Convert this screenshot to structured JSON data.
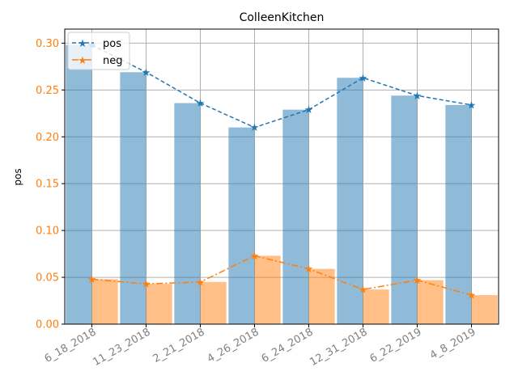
{
  "chart_data": {
    "type": "bar",
    "title": "ColleenKitchen",
    "xlabel": "",
    "ylabel": "pos",
    "ylim": [
      0,
      0.315
    ],
    "yticks": [
      "0.00",
      "0.05",
      "0.10",
      "0.15",
      "0.20",
      "0.25",
      "0.30"
    ],
    "categories": [
      "6_18_2018",
      "11_23_2018",
      "2_21_2018",
      "4_26_2018",
      "6_24_2018",
      "12_31_2018",
      "6_22_2019",
      "4_8_2019"
    ],
    "series": [
      {
        "name": "pos",
        "values": [
          0.298,
          0.269,
          0.236,
          0.21,
          0.229,
          0.263,
          0.244,
          0.234
        ],
        "color": "#1f77b4"
      },
      {
        "name": "neg",
        "values": [
          0.048,
          0.043,
          0.045,
          0.073,
          0.059,
          0.037,
          0.047,
          0.031
        ],
        "color": "#ff7f0e"
      }
    ],
    "grid": true,
    "legend_position": "top-left",
    "tick_label_color": "#ff7f0e",
    "xtick_label_color": "#808080"
  }
}
